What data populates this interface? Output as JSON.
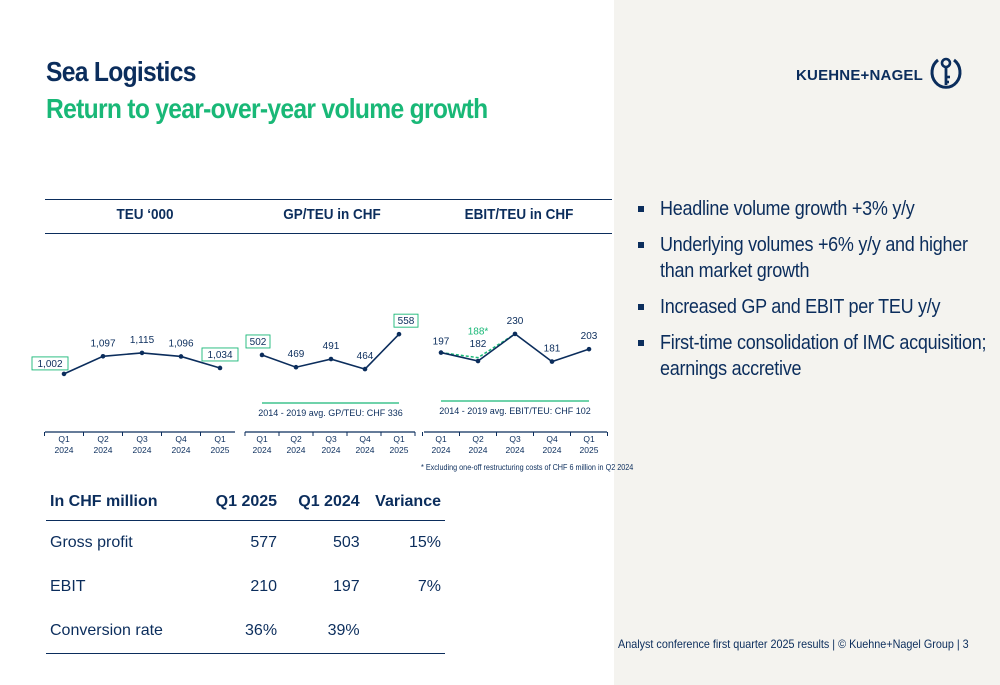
{
  "title": "Sea Logistics",
  "subtitle": "Return to year-over-year volume growth",
  "logo": {
    "text": "KUEHNE+NAGEL",
    "icon": "anchor-key-icon"
  },
  "colors": {
    "navy": "#0b2d5c",
    "green": "#19b877",
    "panel": "#f4f3ef"
  },
  "chart_data": [
    {
      "type": "line",
      "title": "TEU ‘000",
      "categories": [
        "Q1 2024",
        "Q2 2024",
        "Q3 2024",
        "Q4 2024",
        "Q1 2025"
      ],
      "tick_labels": [
        [
          "Q1",
          "2024"
        ],
        [
          "Q2",
          "2024"
        ],
        [
          "Q3",
          "2024"
        ],
        [
          "Q4",
          "2024"
        ],
        [
          "Q1",
          "2025"
        ]
      ],
      "values": [
        1002,
        1097,
        1115,
        1096,
        1034
      ],
      "labels": [
        "1,002",
        "1,097",
        "1,115",
        "1,096",
        "1,034"
      ],
      "boxed": [
        0,
        4
      ],
      "ylim": [
        700,
        1400
      ]
    },
    {
      "type": "line",
      "title": "GP/TEU in CHF",
      "categories": [
        "Q1 2024",
        "Q2 2024",
        "Q3 2024",
        "Q4 2024",
        "Q1 2025"
      ],
      "tick_labels": [
        [
          "Q1",
          "2024"
        ],
        [
          "Q2",
          "2024"
        ],
        [
          "Q3",
          "2024"
        ],
        [
          "Q4",
          "2024"
        ],
        [
          "Q1",
          "2025"
        ]
      ],
      "values": [
        502,
        469,
        491,
        464,
        558
      ],
      "labels": [
        "502",
        "469",
        "491",
        "464",
        "558"
      ],
      "boxed": [
        0,
        4
      ],
      "reference": {
        "value": 336,
        "label": "2014 - 2019 avg. GP/TEU: CHF 336"
      },
      "ylim": [
        300,
        650
      ]
    },
    {
      "type": "line",
      "title": "EBIT/TEU in CHF",
      "categories": [
        "Q1 2024",
        "Q2 2024",
        "Q3 2024",
        "Q4 2024",
        "Q1 2025"
      ],
      "tick_labels": [
        [
          "Q1",
          "2024"
        ],
        [
          "Q2",
          "2024"
        ],
        [
          "Q3",
          "2024"
        ],
        [
          "Q4",
          "2024"
        ],
        [
          "Q1",
          "2025"
        ]
      ],
      "values": [
        197,
        182,
        230,
        181,
        203
      ],
      "labels": [
        "197",
        "182",
        "230",
        "181",
        "203"
      ],
      "adjusted": {
        "index": 1,
        "value": 188,
        "label": "188*"
      },
      "reference": {
        "value": 102,
        "label": "2014 - 2019 avg. EBIT/TEU: CHF 102"
      },
      "ylim": [
        60,
        290
      ]
    }
  ],
  "footnote": "* Excluding one-off restructuring costs of CHF 6 million in Q2 2024",
  "bullets": [
    "Headline volume growth +3% y/y",
    "Underlying volumes +6% y/y and higher than market growth",
    "Increased GP and EBIT per TEU y/y",
    "First-time consolidation of IMC acquisition; earnings accretive"
  ],
  "table": {
    "headers": [
      "In CHF million",
      "Q1 2025",
      "Q1 2024",
      "Variance"
    ],
    "rows": [
      [
        "Gross profit",
        "577",
        "503",
        "15%"
      ],
      [
        "EBIT",
        "210",
        "197",
        "7%"
      ],
      [
        "Conversion rate",
        "36%",
        "39%",
        ""
      ]
    ]
  },
  "footer": "Analyst conference first quarter 2025 results | © Kuehne+Nagel Group | 3"
}
